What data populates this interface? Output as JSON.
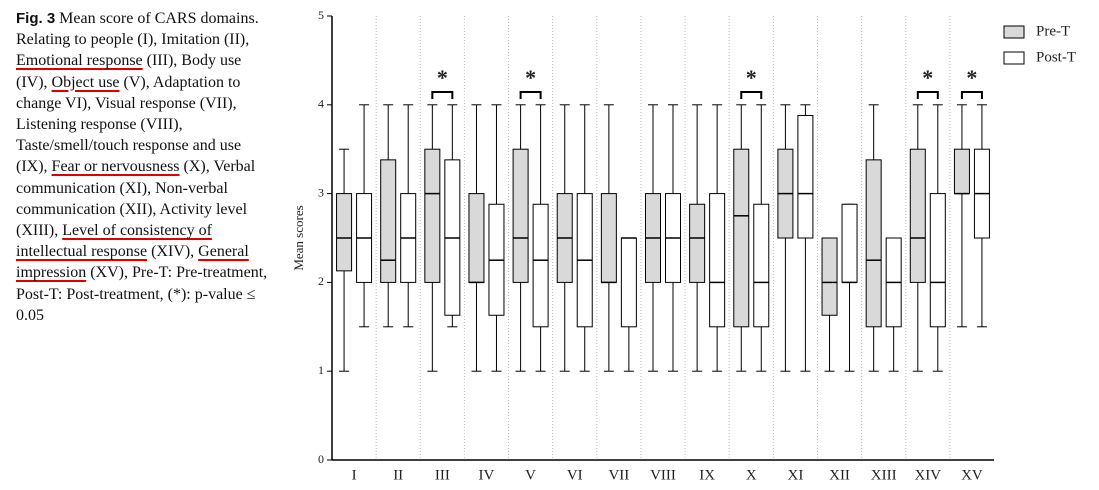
{
  "caption": {
    "label": "Fig. 3",
    "segments": [
      {
        "text": "Mean score of CARS domains. Relating to people (I), Imitation (II), ",
        "underline": false
      },
      {
        "text": "Emotional response",
        "underline": true
      },
      {
        "text": " (III), Body use (IV), ",
        "underline": false
      },
      {
        "text": "Object use",
        "underline": true
      },
      {
        "text": " (V), Adaptation to change VI), Visual response (VII), Listening response (VIII), Taste/smell/touch response and use (IX), ",
        "underline": false
      },
      {
        "text": "Fear or nervousness",
        "underline": true
      },
      {
        "text": " (X), Verbal communication (XI), Non-verbal communication (XII), Activity level (XIII), ",
        "underline": false
      },
      {
        "text": "Level of consistency of intellectual response",
        "underline": true
      },
      {
        "text": " (XIV), ",
        "underline": false
      },
      {
        "text": "General impression",
        "underline": true
      },
      {
        "text": " (XV), Pre-T: Pre-treatment, Post-T: Post-treatment, (*): p-value ≤ 0.05",
        "underline": false
      }
    ]
  },
  "chart_data": {
    "type": "box",
    "y_label": "Mean scores",
    "categories": [
      "I",
      "II",
      "III",
      "IV",
      "V",
      "VI",
      "VII",
      "VIII",
      "IX",
      "X",
      "XI",
      "XII",
      "XIII",
      "XIV",
      "XV"
    ],
    "ylim": [
      0,
      5
    ],
    "yticks": [
      0,
      1,
      2,
      3,
      4,
      5
    ],
    "significance_marker": "*",
    "significant": [
      false,
      false,
      true,
      false,
      true,
      false,
      false,
      false,
      false,
      true,
      false,
      false,
      false,
      true,
      true
    ],
    "series": [
      {
        "name": "Pre-T",
        "color": "#d9d9d9",
        "values": [
          {
            "min": 1,
            "q1": 2.13,
            "median": 2.5,
            "q3": 3,
            "max": 3.5
          },
          {
            "min": 1.5,
            "q1": 2,
            "median": 2.25,
            "q3": 3.38,
            "max": 4
          },
          {
            "min": 1,
            "q1": 2,
            "median": 3,
            "q3": 3.5,
            "max": 4
          },
          {
            "min": 1,
            "q1": 2,
            "median": 2,
            "q3": 3,
            "max": 4
          },
          {
            "min": 1,
            "q1": 2,
            "median": 2.5,
            "q3": 3.5,
            "max": 4
          },
          {
            "min": 1,
            "q1": 2,
            "median": 2.5,
            "q3": 3,
            "max": 4
          },
          {
            "min": 1,
            "q1": 2,
            "median": 2,
            "q3": 3,
            "max": 4
          },
          {
            "min": 1,
            "q1": 2,
            "median": 2.5,
            "q3": 3,
            "max": 4
          },
          {
            "min": 1,
            "q1": 2,
            "median": 2.5,
            "q3": 2.88,
            "max": 4
          },
          {
            "min": 1,
            "q1": 1.5,
            "median": 2.75,
            "q3": 3.5,
            "max": 4
          },
          {
            "min": 1,
            "q1": 2.5,
            "median": 3,
            "q3": 3.5,
            "max": 4
          },
          {
            "min": 1,
            "q1": 1.63,
            "median": 2,
            "q3": 2.5,
            "max": 2.5
          },
          {
            "min": 1,
            "q1": 1.5,
            "median": 2.25,
            "q3": 3.38,
            "max": 4
          },
          {
            "min": 1,
            "q1": 2,
            "median": 2.5,
            "q3": 3.5,
            "max": 4
          },
          {
            "min": 1.5,
            "q1": 3,
            "median": 3,
            "q3": 3.5,
            "max": 4
          }
        ]
      },
      {
        "name": "Post-T",
        "color": "#ffffff",
        "values": [
          {
            "min": 1.5,
            "q1": 2,
            "median": 2.5,
            "q3": 3,
            "max": 4
          },
          {
            "min": 1.5,
            "q1": 2,
            "median": 2.5,
            "q3": 3,
            "max": 4
          },
          {
            "min": 1.5,
            "q1": 1.63,
            "median": 2.5,
            "q3": 3.38,
            "max": 4
          },
          {
            "min": 1,
            "q1": 1.63,
            "median": 2.25,
            "q3": 2.88,
            "max": 4
          },
          {
            "min": 1,
            "q1": 1.5,
            "median": 2.25,
            "q3": 2.88,
            "max": 4
          },
          {
            "min": 1,
            "q1": 1.5,
            "median": 2.25,
            "q3": 3,
            "max": 4
          },
          {
            "min": 1,
            "q1": 1.5,
            "median": 2.5,
            "q3": 2.5,
            "max": 2.5
          },
          {
            "min": 1,
            "q1": 2,
            "median": 2.5,
            "q3": 3,
            "max": 4
          },
          {
            "min": 1,
            "q1": 1.5,
            "median": 2,
            "q3": 3,
            "max": 4
          },
          {
            "min": 1,
            "q1": 1.5,
            "median": 2,
            "q3": 2.88,
            "max": 4
          },
          {
            "min": 1,
            "q1": 2.5,
            "median": 3,
            "q3": 3.88,
            "max": 4
          },
          {
            "min": 1,
            "q1": 2,
            "median": 2,
            "q3": 2.88,
            "max": 2.88
          },
          {
            "min": 1,
            "q1": 1.5,
            "median": 2,
            "q3": 2.5,
            "max": 2.5
          },
          {
            "min": 1,
            "q1": 1.5,
            "median": 2,
            "q3": 3,
            "max": 4
          },
          {
            "min": 1.5,
            "q1": 2.5,
            "median": 3,
            "q3": 3.5,
            "max": 4
          }
        ]
      }
    ]
  }
}
